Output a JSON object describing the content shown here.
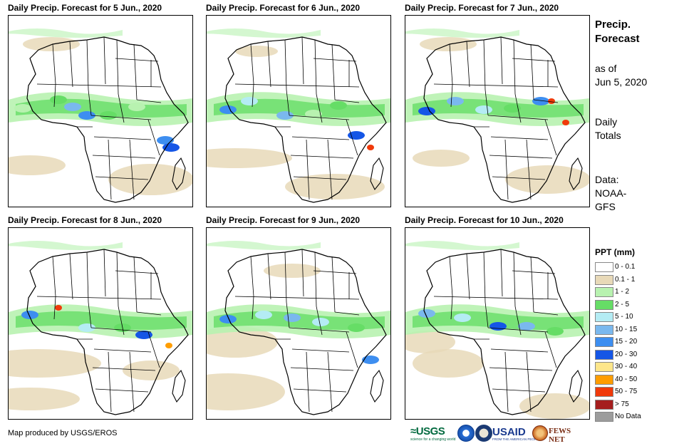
{
  "panels": [
    {
      "title": "Daily Precip. Forecast for 5 Jun., 2020"
    },
    {
      "title": "Daily Precip. Forecast for 6 Jun., 2020"
    },
    {
      "title": "Daily Precip. Forecast for 7 Jun., 2020"
    },
    {
      "title": "Daily Precip. Forecast for 8 Jun., 2020"
    },
    {
      "title": "Daily Precip. Forecast for 9 Jun., 2020"
    },
    {
      "title": "Daily Precip. Forecast for 10 Jun., 2020"
    }
  ],
  "side": {
    "title_line1": "Precip.",
    "title_line2": "Forecast",
    "asof_line1": "as of",
    "asof_line2": "Jun 5, 2020",
    "daily_line1": "Daily",
    "daily_line2": "Totals",
    "data_line1": "Data:",
    "data_line2": "NOAA-",
    "data_line3": "GFS"
  },
  "legend": {
    "title": "PPT (mm)",
    "items": [
      {
        "label": "0 - 0.1",
        "color": "#ffffff"
      },
      {
        "label": "0.1 - 1",
        "color": "#e8d9b8"
      },
      {
        "label": "1 - 2",
        "color": "#b8f2b0"
      },
      {
        "label": "2 - 5",
        "color": "#66dd66"
      },
      {
        "label": "5 - 10",
        "color": "#b4ecf4"
      },
      {
        "label": "10 - 15",
        "color": "#7ab8ee"
      },
      {
        "label": "15 - 20",
        "color": "#3d8ef0"
      },
      {
        "label": "20 - 30",
        "color": "#1556e6"
      },
      {
        "label": "30 - 40",
        "color": "#fde68a"
      },
      {
        "label": "40 - 50",
        "color": "#ff9d00"
      },
      {
        "label": "50 - 75",
        "color": "#f03a0a"
      },
      {
        "label": "> 75",
        "color": "#a51e1e"
      },
      {
        "label": "No Data",
        "color": "#9c9c9c"
      }
    ]
  },
  "credit": "Map produced by USGS/EROS",
  "logos": {
    "usgs": "≈USGS",
    "usgs_tagline": "science for a changing world",
    "usaid": "USAID",
    "usaid_tagline": "FROM THE AMERICAN PEOPLE",
    "fews": "FEWS NET"
  }
}
